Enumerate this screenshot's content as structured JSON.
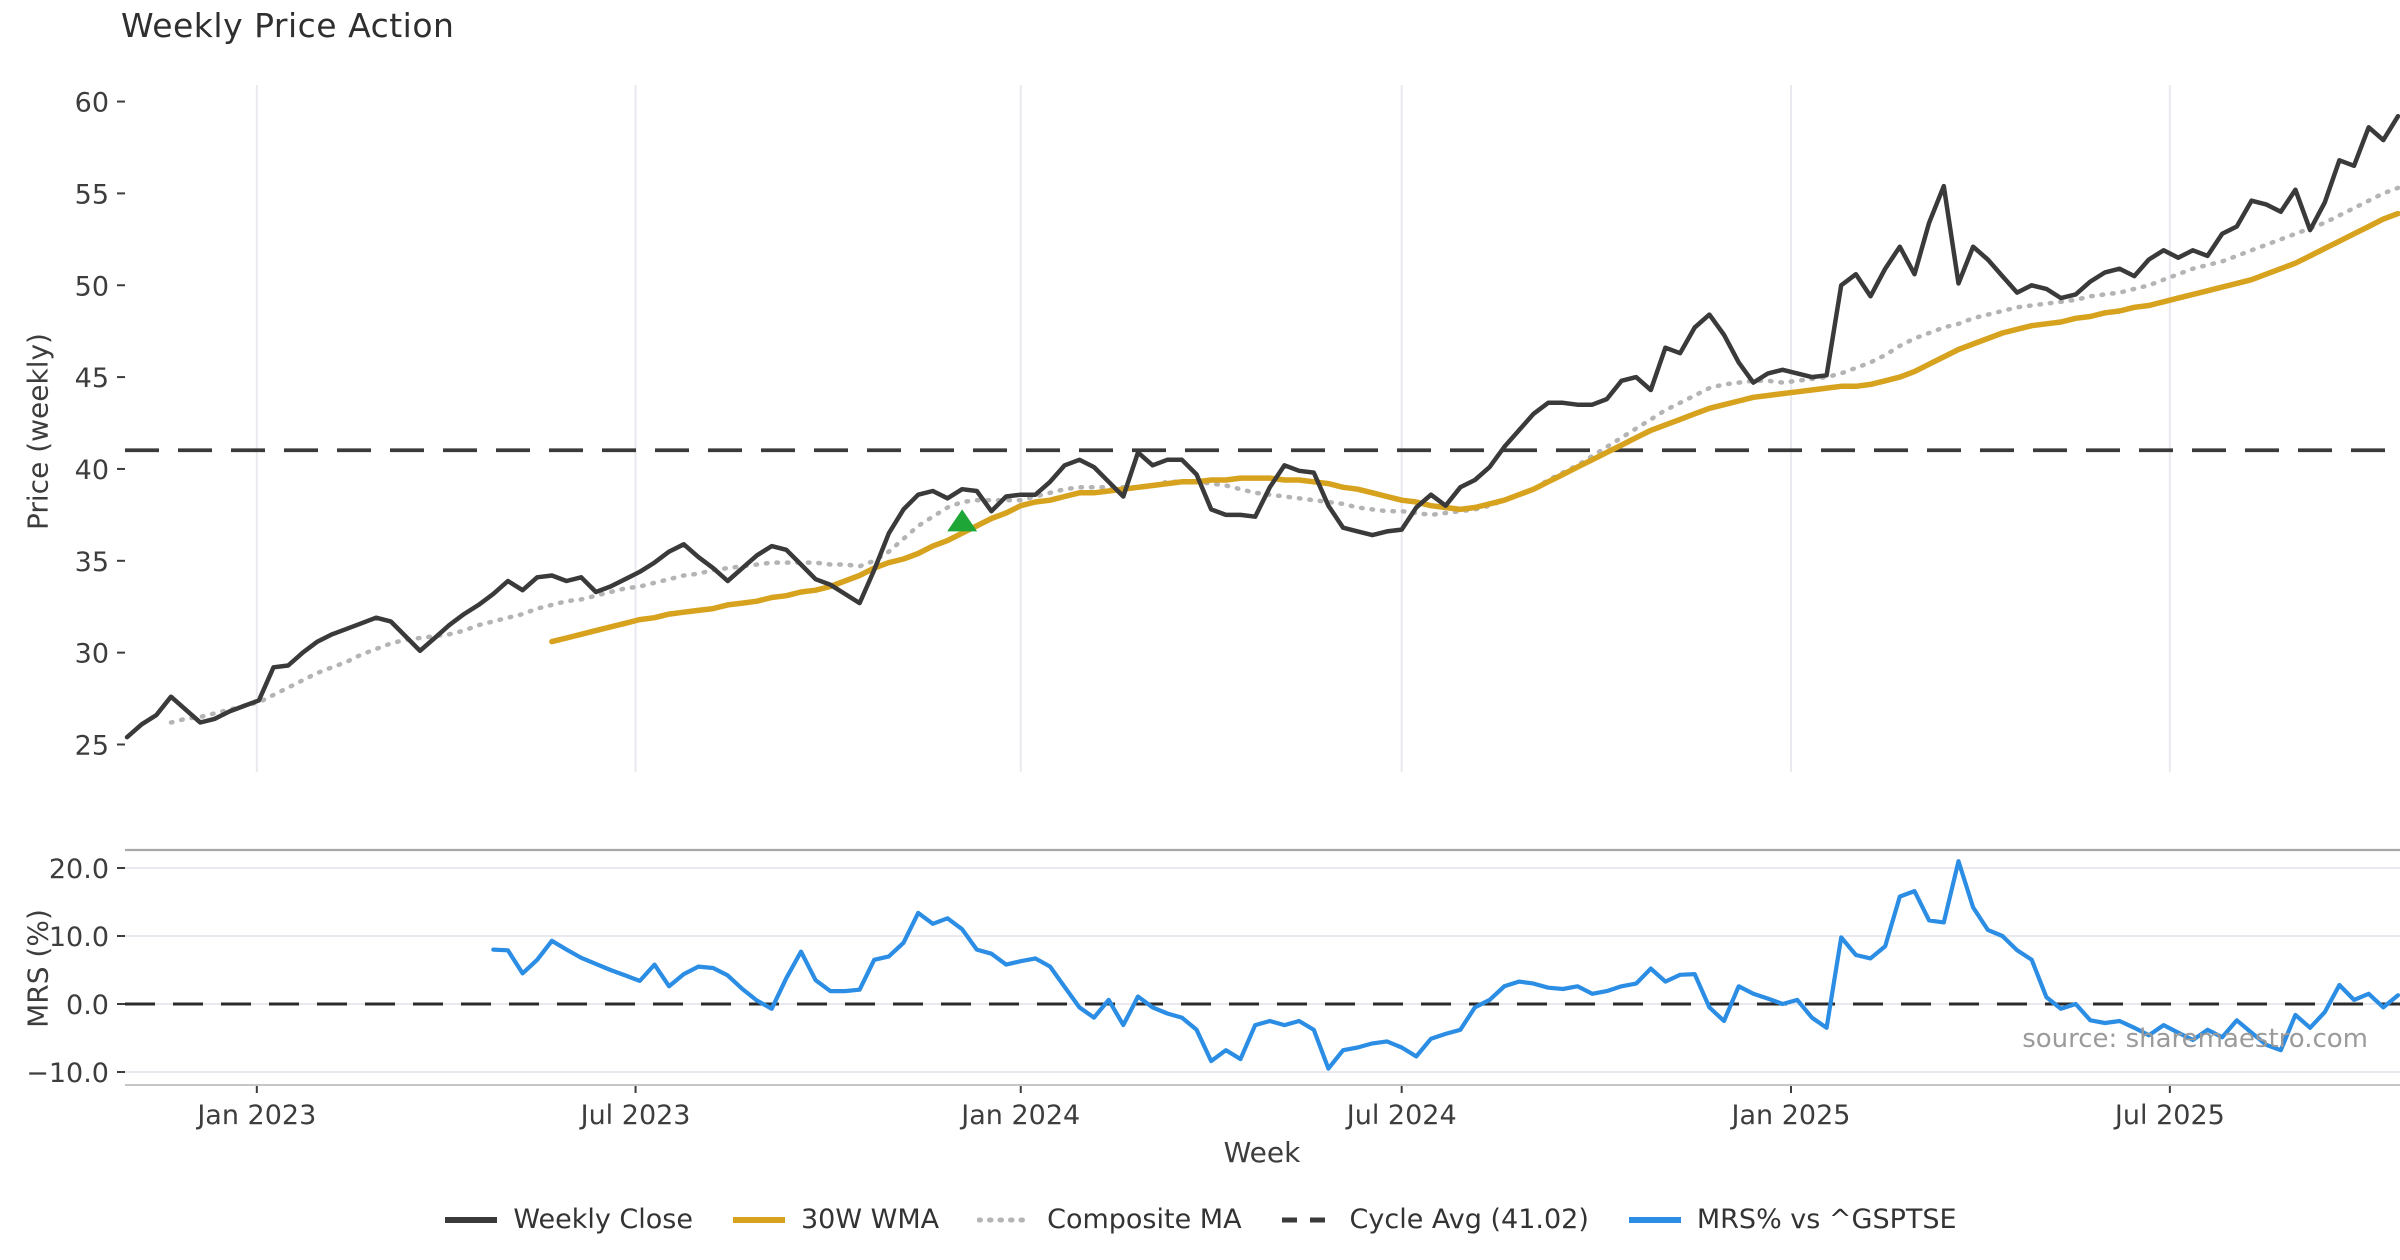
{
  "page_title": "Weekly Price Action",
  "source_note": "source: sharemaestro.com",
  "chart_data": {
    "type": "line",
    "title": "Weekly Price Action",
    "xlabel": "Week",
    "weeks_total": 156,
    "x_start": "Oct 2022",
    "x_end": "Oct 2025",
    "x_ticks": [
      {
        "label": "Jan 2023",
        "week": 8.86
      },
      {
        "label": "Jul 2023",
        "week": 34.71
      },
      {
        "label": "Jan 2024",
        "week": 61.0
      },
      {
        "label": "Jul 2024",
        "week": 87.0
      },
      {
        "label": "Jan 2025",
        "week": 113.57
      },
      {
        "label": "Jul 2025",
        "week": 139.43
      }
    ],
    "colors": {
      "weekly_close": "#3a3a3a",
      "wma": "#d7a21e",
      "composite": "#b4b4b4",
      "cycle_avg": "#3a3a3a",
      "mrs": "#2b8de4",
      "marker_green": "#1ea636",
      "grid": "#e9e9ef",
      "spine": "#a8a8a8",
      "spine_light": "#c6c6c6",
      "tick_text": "#3d3d3d"
    },
    "legend": [
      {
        "label": "Weekly Close",
        "style": "solid",
        "color": "#3a3a3a"
      },
      {
        "label": "30W WMA",
        "style": "solid",
        "color": "#d7a21e"
      },
      {
        "label": "Composite MA",
        "style": "dotted",
        "color": "#b4b4b4"
      },
      {
        "label": "Cycle Avg (41.02)",
        "style": "dashed",
        "color": "#3a3a3a"
      },
      {
        "label": "MRS% vs ^GSPTSE",
        "style": "solid",
        "color": "#2b8de4"
      }
    ],
    "price_panel": {
      "ylabel": "Price (weekly)",
      "yticks": [
        25,
        30,
        35,
        40,
        45,
        50,
        55,
        60
      ],
      "ylim": [
        23.7,
        60.9
      ],
      "cycle_avg": 41.02,
      "marker": {
        "shape": "triangle-up",
        "week": 57,
        "value": 37.2,
        "meaning": "signal-marker"
      },
      "series": [
        {
          "name": "Weekly Close",
          "start_week": 0,
          "values": [
            25.4,
            26.1,
            26.6,
            27.6,
            26.9,
            26.2,
            26.4,
            26.8,
            27.1,
            27.4,
            29.2,
            29.3,
            30.0,
            30.6,
            31.0,
            31.3,
            31.6,
            31.9,
            31.7,
            30.9,
            30.1,
            30.8,
            31.5,
            32.1,
            32.6,
            33.2,
            33.9,
            33.4,
            34.1,
            34.2,
            33.9,
            34.1,
            33.3,
            33.6,
            34.0,
            34.4,
            34.9,
            35.5,
            35.9,
            35.2,
            34.6,
            33.9,
            34.6,
            35.3,
            35.8,
            35.6,
            34.8,
            34.0,
            33.7,
            33.2,
            32.7,
            34.5,
            36.5,
            37.8,
            38.6,
            38.8,
            38.4,
            38.9,
            38.8,
            37.7,
            38.5,
            38.6,
            38.6,
            39.3,
            40.2,
            40.5,
            40.1,
            39.3,
            38.5,
            40.9,
            40.2,
            40.5,
            40.5,
            39.7,
            37.8,
            37.5,
            37.5,
            37.4,
            39.0,
            40.2,
            39.9,
            39.8,
            38.0,
            36.8,
            36.6,
            36.4,
            36.6,
            36.7,
            37.9,
            38.6,
            38.0,
            39.0,
            39.4,
            40.1,
            41.2,
            42.1,
            43.0,
            43.6,
            43.6,
            43.5,
            43.5,
            43.8,
            44.8,
            45.0,
            44.3,
            46.6,
            46.3,
            47.7,
            48.4,
            47.3,
            45.8,
            44.7,
            45.2,
            45.4,
            45.2,
            45.0,
            45.1,
            50.0,
            50.6,
            49.4,
            50.9,
            52.1,
            50.6,
            53.4,
            55.4,
            50.1,
            52.1,
            51.4,
            50.5,
            49.6,
            50.0,
            49.8,
            49.3,
            49.5,
            50.2,
            50.7,
            50.9,
            50.5,
            51.4,
            51.9,
            51.5,
            51.9,
            51.6,
            52.8,
            53.2,
            54.6,
            54.4,
            54.0,
            55.2,
            53.0,
            54.5,
            56.8,
            56.5,
            58.6,
            57.9,
            59.2
          ]
        },
        {
          "name": "30W WMA",
          "start_week": 29,
          "values": [
            30.6,
            30.8,
            31.0,
            31.2,
            31.4,
            31.6,
            31.8,
            31.9,
            32.1,
            32.2,
            32.3,
            32.4,
            32.6,
            32.7,
            32.8,
            33.0,
            33.1,
            33.3,
            33.4,
            33.6,
            33.9,
            34.2,
            34.6,
            34.9,
            35.1,
            35.4,
            35.8,
            36.1,
            36.5,
            36.9,
            37.3,
            37.6,
            38.0,
            38.2,
            38.3,
            38.5,
            38.7,
            38.7,
            38.8,
            38.9,
            39.0,
            39.1,
            39.2,
            39.3,
            39.3,
            39.4,
            39.4,
            39.5,
            39.5,
            39.5,
            39.4,
            39.4,
            39.3,
            39.2,
            39.0,
            38.9,
            38.7,
            38.5,
            38.3,
            38.2,
            38.0,
            37.9,
            37.8,
            37.9,
            38.1,
            38.3,
            38.6,
            38.9,
            39.3,
            39.7,
            40.1,
            40.5,
            40.9,
            41.3,
            41.7,
            42.1,
            42.4,
            42.7,
            43.0,
            43.3,
            43.5,
            43.7,
            43.9,
            44.0,
            44.1,
            44.2,
            44.3,
            44.4,
            44.5,
            44.5,
            44.6,
            44.8,
            45.0,
            45.3,
            45.7,
            46.1,
            46.5,
            46.8,
            47.1,
            47.4,
            47.6,
            47.8,
            47.9,
            48.0,
            48.2,
            48.3,
            48.5,
            48.6,
            48.8,
            48.9,
            49.1,
            49.3,
            49.5,
            49.7,
            49.9,
            50.1,
            50.3,
            50.6,
            50.9,
            51.2,
            51.6,
            52.0,
            52.4,
            52.8,
            53.2,
            53.6,
            53.9
          ]
        },
        {
          "name": "Composite MA",
          "start_week": 3,
          "values": [
            26.2,
            26.4,
            26.5,
            26.7,
            26.9,
            27.1,
            27.3,
            27.7,
            28.1,
            28.5,
            28.9,
            29.2,
            29.5,
            29.9,
            30.2,
            30.5,
            30.7,
            30.8,
            30.9,
            31.0,
            31.2,
            31.5,
            31.7,
            31.9,
            32.1,
            32.4,
            32.6,
            32.8,
            32.9,
            33.1,
            33.3,
            33.5,
            33.6,
            33.8,
            34.0,
            34.2,
            34.3,
            34.5,
            34.6,
            34.7,
            34.8,
            34.9,
            34.9,
            34.9,
            34.9,
            34.8,
            34.8,
            34.7,
            35.0,
            35.5,
            36.2,
            36.9,
            37.4,
            37.9,
            38.2,
            38.3,
            38.3,
            38.3,
            38.3,
            38.5,
            38.7,
            38.9,
            39.0,
            39.0,
            39.0,
            39.0,
            39.0,
            39.1,
            39.3,
            39.3,
            39.3,
            39.2,
            39.1,
            38.9,
            38.7,
            38.6,
            38.5,
            38.4,
            38.3,
            38.2,
            38.1,
            37.9,
            37.8,
            37.7,
            37.7,
            37.6,
            37.5,
            37.6,
            37.7,
            37.8,
            38.0,
            38.3,
            38.6,
            38.9,
            39.4,
            39.8,
            40.2,
            40.7,
            41.2,
            41.7,
            42.2,
            42.7,
            43.2,
            43.6,
            44.0,
            44.4,
            44.6,
            44.7,
            44.8,
            44.8,
            44.7,
            44.8,
            44.9,
            45.0,
            45.2,
            45.5,
            45.8,
            46.2,
            46.7,
            47.1,
            47.4,
            47.7,
            47.9,
            48.2,
            48.4,
            48.6,
            48.8,
            48.9,
            49.0,
            49.1,
            49.2,
            49.4,
            49.5,
            49.6,
            49.8,
            50.0,
            50.3,
            50.6,
            50.9,
            51.1,
            51.3,
            51.6,
            51.9,
            52.2,
            52.5,
            52.8,
            53.1,
            53.4,
            53.8,
            54.2,
            54.6,
            55.0,
            55.3
          ]
        }
      ]
    },
    "mrs_panel": {
      "ylabel": "MRS (%)",
      "yticks": [
        20.0,
        10.0,
        0.0,
        -10.0
      ],
      "ylim": [
        -11.9,
        22.6
      ],
      "zero_line_dashed": true,
      "series": [
        {
          "name": "MRS% vs ^GSPTSE",
          "start_week": 25,
          "values": [
            8.0,
            7.9,
            4.5,
            6.5,
            9.3,
            8.0,
            6.8,
            5.9,
            5.0,
            4.2,
            3.4,
            5.8,
            2.6,
            4.4,
            5.5,
            5.3,
            4.2,
            2.2,
            0.5,
            -0.7,
            3.8,
            7.7,
            3.5,
            1.9,
            1.9,
            2.1,
            6.5,
            7.0,
            9.0,
            13.4,
            11.8,
            12.6,
            11.0,
            8.0,
            7.4,
            5.8,
            6.3,
            6.7,
            5.5,
            2.5,
            -0.5,
            -2.0,
            0.6,
            -3.1,
            1.1,
            -0.5,
            -1.4,
            -2.0,
            -3.8,
            -8.4,
            -6.8,
            -8.1,
            -3.1,
            -2.5,
            -3.1,
            -2.5,
            -3.8,
            -9.5,
            -6.8,
            -6.4,
            -5.8,
            -5.5,
            -6.4,
            -7.7,
            -5.1,
            -4.4,
            -3.8,
            -0.5,
            0.6,
            2.6,
            3.3,
            3.0,
            2.4,
            2.2,
            2.6,
            1.5,
            1.9,
            2.6,
            3.0,
            5.2,
            3.3,
            4.3,
            4.4,
            -0.5,
            -2.5,
            2.6,
            1.5,
            0.8,
            0.0,
            0.6,
            -2.0,
            -3.5,
            9.8,
            7.2,
            6.7,
            8.5,
            15.8,
            16.6,
            12.3,
            12.0,
            21.0,
            14.2,
            10.9,
            10.0,
            7.9,
            6.5,
            1.0,
            -0.7,
            0.0,
            -2.4,
            -2.8,
            -2.5,
            -3.5,
            -4.6,
            -3.1,
            -4.2,
            -5.3,
            -3.8,
            -4.9,
            -2.4,
            -4.2,
            -6.0,
            -6.8,
            -1.6,
            -3.5,
            -1.2,
            2.8,
            0.6,
            1.5,
            -0.5,
            1.3
          ]
        }
      ]
    }
  }
}
